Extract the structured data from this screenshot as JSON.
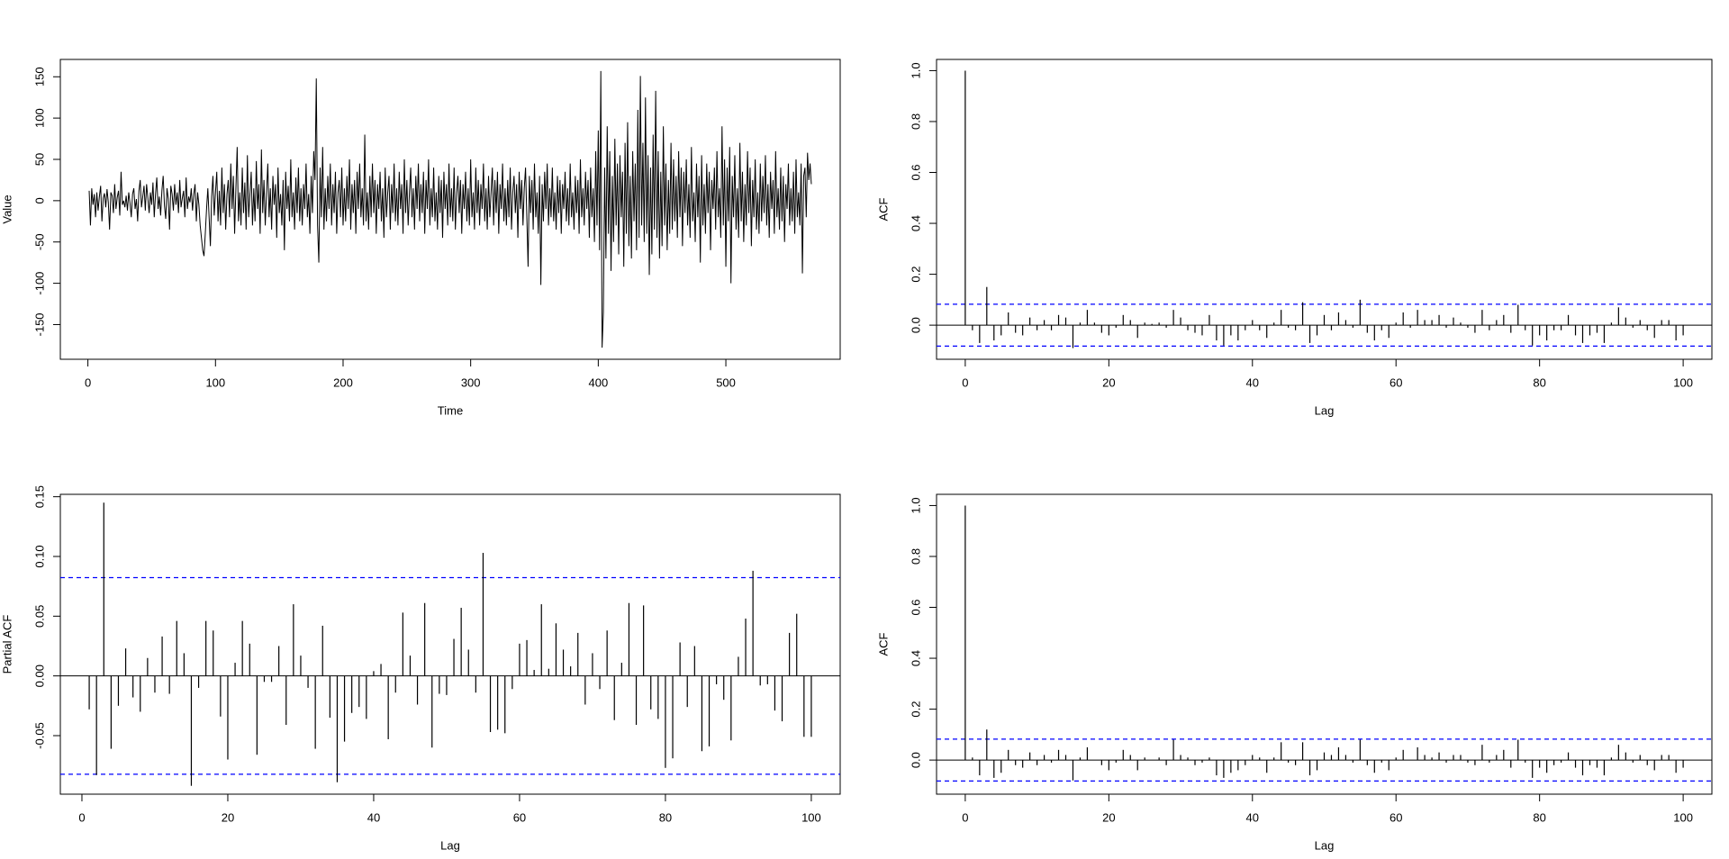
{
  "chart_data": [
    {
      "type": "line",
      "xlabel": "Time",
      "ylabel": "Value",
      "color": "#000000",
      "start": 1,
      "xlim": [
        -21.6,
        589.6
      ],
      "ylim": [
        -192,
        171
      ],
      "xticks": [
        0,
        100,
        200,
        300,
        400,
        500
      ],
      "yticks": [
        -150,
        -100,
        -50,
        0,
        50,
        100,
        150
      ],
      "values": [
        12,
        -30,
        15,
        -5,
        8,
        -20,
        10,
        -12,
        5,
        18,
        -25,
        3,
        9,
        -8,
        14,
        -2,
        -35,
        10,
        6,
        -15,
        20,
        -10,
        4,
        12,
        -18,
        35,
        -5,
        0,
        -8,
        6,
        -12,
        10,
        -3,
        -20,
        8,
        15,
        -10,
        2,
        -25,
        12,
        25,
        -8,
        5,
        18,
        -12,
        20,
        3,
        -15,
        10,
        -5,
        22,
        -20,
        8,
        28,
        -10,
        5,
        -18,
        12,
        30,
        -6,
        -22,
        15,
        2,
        -35,
        18,
        8,
        -12,
        20,
        -5,
        10,
        -15,
        25,
        -8,
        3,
        12,
        -20,
        28,
        -10,
        5,
        -2,
        15,
        -12,
        8,
        20,
        -25,
        10,
        -5,
        -30,
        -45,
        -60,
        -67,
        -40,
        -10,
        15,
        -20,
        -55,
        5,
        30,
        -18,
        10,
        35,
        -25,
        12,
        -30,
        40,
        -15,
        20,
        -35,
        8,
        25,
        -20,
        45,
        -10,
        30,
        -40,
        15,
        65,
        -25,
        10,
        -30,
        40,
        -15,
        22,
        -35,
        55,
        -20,
        8,
        35,
        -30,
        15,
        -25,
        48,
        -10,
        20,
        -40,
        62,
        -15,
        25,
        -30,
        10,
        45,
        -20,
        15,
        -35,
        30,
        -5,
        20,
        -45,
        40,
        -15,
        8,
        -30,
        25,
        -60,
        35,
        -10,
        18,
        -25,
        50,
        -20,
        10,
        -35,
        28,
        -15,
        40,
        -25,
        15,
        -30,
        20,
        -10,
        45,
        -20,
        8,
        -40,
        30,
        -15,
        60,
        25,
        148,
        -30,
        -75,
        40,
        -20,
        65,
        -35,
        15,
        -25,
        30,
        -10,
        45,
        -30,
        20,
        -15,
        35,
        -40,
        10,
        25,
        -20,
        40,
        -30,
        15,
        -25,
        30,
        -10,
        50,
        -35,
        20,
        -15,
        25,
        -40,
        35,
        -10,
        45,
        -20,
        15,
        -30,
        80,
        -25,
        10,
        -35,
        30,
        -20,
        45,
        -15,
        25,
        -40,
        20,
        -10,
        35,
        -25,
        15,
        -45,
        40,
        -20,
        10,
        30,
        -35,
        20,
        -15,
        45,
        -25,
        15,
        -30,
        35,
        -10,
        20,
        -40,
        50,
        -15,
        25,
        -30,
        10,
        40,
        -20,
        15,
        -35,
        30,
        -10,
        45,
        -25,
        20,
        -15,
        35,
        -40,
        25,
        -10,
        50,
        -30,
        15,
        -20,
        40,
        -25,
        10,
        -35,
        30,
        -15,
        25,
        -45,
        35,
        -10,
        20,
        -30,
        45,
        -20,
        15,
        -25,
        40,
        -35,
        10,
        30,
        -15,
        25,
        -40,
        20,
        -10,
        35,
        -25,
        15,
        -30,
        50,
        -20,
        10,
        -35,
        40,
        -15,
        25,
        -30,
        20,
        -10,
        45,
        -25,
        15,
        -35,
        30,
        -20,
        10,
        40,
        -30,
        25,
        -15,
        35,
        -40,
        20,
        -10,
        45,
        -25,
        15,
        -30,
        25,
        -20,
        40,
        -35,
        10,
        30,
        -15,
        20,
        -45,
        35,
        -10,
        25,
        -30,
        15,
        40,
        -20,
        -80,
        30,
        -15,
        25,
        -35,
        45,
        -20,
        10,
        -40,
        30,
        -102,
        20,
        -25,
        35,
        -10,
        45,
        -30,
        15,
        -20,
        40,
        -25,
        10,
        -35,
        30,
        -15,
        25,
        -40,
        20,
        -10,
        35,
        -25,
        15,
        -30,
        45,
        -20,
        10,
        -35,
        30,
        -15,
        25,
        -40,
        50,
        -20,
        15,
        -30,
        35,
        -10,
        25,
        -45,
        40,
        -20,
        15,
        -50,
        60,
        -30,
        85,
        -60,
        157,
        -178,
        -135,
        40,
        -70,
        90,
        -40,
        60,
        -85,
        30,
        -50,
        75,
        -30,
        45,
        -65,
        55,
        -20,
        35,
        -80,
        70,
        -40,
        95,
        -55,
        30,
        -70,
        60,
        -25,
        45,
        -60,
        110,
        -45,
        151,
        -30,
        70,
        -50,
        125,
        -40,
        55,
        -90,
        40,
        -65,
        80,
        -35,
        133,
        -45,
        60,
        -70,
        35,
        -55,
        90,
        -30,
        45,
        -60,
        25,
        -40,
        70,
        -35,
        50,
        -25,
        30,
        -45,
        60,
        -20,
        40,
        -55,
        35,
        -15,
        50,
        -30,
        20,
        -45,
        65,
        -25,
        10,
        -50,
        45,
        -20,
        30,
        -75,
        55,
        -30,
        20,
        -40,
        45,
        -15,
        35,
        -60,
        25,
        -10,
        40,
        -35,
        60,
        -20,
        15,
        -45,
        90,
        -30,
        50,
        -80,
        40,
        -25,
        65,
        -100,
        30,
        -20,
        55,
        -35,
        15,
        -45,
        70,
        -25,
        35,
        -50,
        20,
        -30,
        60,
        -15,
        40,
        -55,
        25,
        -20,
        50,
        -35,
        10,
        -40,
        45,
        -25,
        30,
        -15,
        55,
        -30,
        20,
        -45,
        35,
        -10,
        25,
        -40,
        60,
        -20,
        15,
        -35,
        40,
        -25,
        30,
        -50,
        20,
        -10,
        45,
        -30,
        15,
        -25,
        35,
        -40,
        50,
        -20,
        10,
        -30,
        45,
        -88,
        30,
        40,
        -20,
        58,
        25,
        45,
        20
      ]
    },
    {
      "type": "stem",
      "xlabel": "Lag",
      "ylabel": "ACF",
      "color": "#000000",
      "start": 0,
      "xlim": [
        -4,
        104
      ],
      "ylim": [
        -0.134,
        1.044
      ],
      "xticks": [
        0,
        20,
        40,
        60,
        80,
        100
      ],
      "yticks": [
        {
          "value": 0,
          "label": "0.0"
        },
        0.2,
        0.4,
        0.6,
        0.8,
        {
          "value": 1,
          "label": "1.0"
        }
      ],
      "ci_lines": [
        0.0823,
        -0.0823
      ],
      "ci_color": "#0000ff",
      "values": [
        1,
        -0.02,
        -0.07,
        0.15,
        -0.06,
        -0.04,
        0.05,
        -0.03,
        -0.04,
        0.03,
        -0.02,
        0.02,
        -0.02,
        0.04,
        0.03,
        -0.09,
        0.01,
        0.06,
        0.01,
        -0.03,
        -0.04,
        -0.01,
        0.04,
        0.02,
        -0.05,
        0.01,
        0.005,
        0.01,
        -0.01,
        0.06,
        0.03,
        -0.02,
        -0.03,
        -0.04,
        0.04,
        -0.06,
        -0.08,
        -0.04,
        -0.06,
        -0.02,
        0.02,
        -0.02,
        -0.05,
        0.01,
        0.06,
        -0.01,
        -0.02,
        0.09,
        -0.07,
        -0.04,
        0.04,
        -0.02,
        0.05,
        0.02,
        -0.01,
        0.1,
        -0.03,
        -0.06,
        -0.02,
        -0.05,
        0.01,
        0.05,
        -0.01,
        0.06,
        0.02,
        0.02,
        0.04,
        -0.01,
        0.03,
        0.01,
        -0.01,
        -0.03,
        0.06,
        -0.02,
        0.02,
        0.04,
        -0.03,
        0.08,
        -0.02,
        -0.08,
        -0.04,
        -0.06,
        -0.02,
        -0.02,
        0.04,
        -0.04,
        -0.07,
        -0.04,
        -0.03,
        -0.07,
        0.01,
        0.07,
        0.03,
        -0.01,
        0.02,
        -0.02,
        -0.05,
        0.02,
        0.02,
        -0.06,
        -0.04
      ]
    },
    {
      "type": "stem",
      "xlabel": "Lag",
      "ylabel": "Partial ACF",
      "color": "#000000",
      "start": 1,
      "xlim": [
        -2.96,
        103.96
      ],
      "ylim": [
        -0.099,
        0.152
      ],
      "xticks": [
        0,
        20,
        40,
        60,
        80,
        100
      ],
      "yticks": [
        -0.05,
        {
          "value": 0,
          "label": "0.00"
        },
        0.05,
        {
          "value": 0.1,
          "label": "0.10"
        },
        0.15
      ],
      "ci_lines": [
        0.0823,
        -0.0823
      ],
      "ci_color": "#0000ff",
      "values": [
        -0.028,
        -0.083,
        0.145,
        -0.061,
        -0.025,
        0.023,
        -0.018,
        -0.03,
        0.015,
        -0.014,
        0.033,
        -0.015,
        0.046,
        0.019,
        -0.092,
        -0.01,
        0.046,
        0.038,
        -0.034,
        -0.07,
        0.011,
        0.046,
        0.027,
        -0.066,
        -0.005,
        -0.005,
        0.025,
        -0.041,
        0.06,
        0.017,
        -0.01,
        -0.061,
        0.042,
        -0.035,
        -0.089,
        -0.055,
        -0.031,
        -0.026,
        -0.036,
        0.004,
        0.01,
        -0.053,
        -0.014,
        0.053,
        0.017,
        -0.024,
        0.061,
        -0.06,
        -0.015,
        -0.016,
        0.031,
        0.057,
        0.022,
        -0.014,
        0.103,
        -0.047,
        -0.045,
        -0.048,
        -0.011,
        0.027,
        0.03,
        0.005,
        0.06,
        0.006,
        0.044,
        0.022,
        0.008,
        0.036,
        -0.024,
        0.019,
        -0.011,
        0.038,
        -0.037,
        0.011,
        0.061,
        -0.041,
        0.059,
        -0.028,
        -0.036,
        -0.077,
        -0.069,
        0.028,
        -0.026,
        0.025,
        -0.063,
        -0.059,
        -0.007,
        -0.02,
        -0.054,
        0.016,
        0.048,
        0.088,
        -0.008,
        -0.007,
        -0.029,
        -0.038,
        0.036,
        0.052,
        -0.051,
        -0.051
      ]
    },
    {
      "type": "stem",
      "xlabel": "Lag",
      "ylabel": "ACF",
      "color": "#000000",
      "start": 0,
      "xlim": [
        -4,
        104
      ],
      "ylim": [
        -0.134,
        1.044
      ],
      "xticks": [
        0,
        20,
        40,
        60,
        80,
        100
      ],
      "yticks": [
        {
          "value": 0,
          "label": "0.0"
        },
        0.2,
        0.4,
        0.6,
        0.8,
        {
          "value": 1,
          "label": "1.0"
        }
      ],
      "ci_lines": [
        0.0823,
        -0.0823
      ],
      "ci_color": "#0000ff",
      "values": [
        1,
        0.01,
        -0.06,
        0.12,
        -0.07,
        -0.05,
        0.04,
        -0.02,
        -0.03,
        0.03,
        -0.02,
        0.02,
        -0.01,
        0.04,
        0.02,
        -0.08,
        0.01,
        0.05,
        0,
        -0.02,
        -0.04,
        -0.01,
        0.04,
        0.02,
        -0.04,
        0.01,
        0,
        0.01,
        -0.02,
        0.08,
        0.02,
        0.01,
        -0.02,
        -0.01,
        0.01,
        -0.06,
        -0.07,
        -0.05,
        -0.04,
        -0.02,
        0.02,
        0.01,
        -0.05,
        0.01,
        0.07,
        -0.01,
        -0.02,
        0.07,
        -0.06,
        -0.04,
        0.03,
        0.02,
        0.05,
        0.02,
        -0.01,
        0.08,
        -0.02,
        -0.05,
        -0.01,
        -0.04,
        0.01,
        0.04,
        0,
        0.05,
        0.02,
        0.01,
        0.03,
        -0.01,
        0.02,
        0.02,
        -0.01,
        -0.02,
        0.06,
        -0.01,
        0.02,
        0.04,
        -0.03,
        0.08,
        -0.01,
        -0.07,
        -0.03,
        -0.05,
        -0.02,
        -0.01,
        0.03,
        -0.03,
        -0.06,
        -0.02,
        -0.03,
        -0.06,
        0.01,
        0.06,
        0.03,
        -0.01,
        0.02,
        -0.02,
        -0.04,
        0.02,
        0.02,
        -0.05,
        -0.03
      ]
    }
  ]
}
